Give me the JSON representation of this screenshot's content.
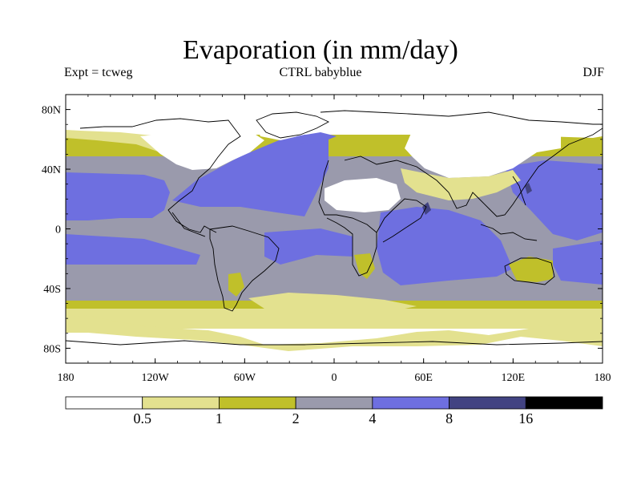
{
  "title": "Evaporation (in mm/day)",
  "expt_label": "Expt = tcweg",
  "run_label": "CTRL babyblue",
  "season": "DJF",
  "colors": {
    "c0": "#ffffff",
    "c1": "#e3e18f",
    "c2": "#c0c02a",
    "c3": "#9a9aac",
    "c4": "#6e6fe0",
    "c5": "#424382",
    "c6": "#000000",
    "coast": "#000000"
  },
  "chart_data": {
    "type": "heatmap",
    "title": "Evaporation (in mm/day)",
    "xaxis": {
      "ticks": [
        "180",
        "120W",
        "60W",
        "0",
        "60E",
        "120E",
        "180"
      ]
    },
    "yaxis": {
      "ticks": [
        "80N",
        "40N",
        "0",
        "40S",
        "80S"
      ]
    },
    "xlim": [
      -180,
      180
    ],
    "ylim": [
      -90,
      90
    ],
    "colorbar": {
      "labels": [
        "0.5",
        "1",
        "2",
        "4",
        "8",
        "16"
      ],
      "levels": [
        0.5,
        1,
        2,
        4,
        8,
        16
      ],
      "colors": [
        "#ffffff",
        "#e3e18f",
        "#c0c02a",
        "#9a9aac",
        "#6e6fe0",
        "#424382",
        "#000000"
      ]
    }
  }
}
